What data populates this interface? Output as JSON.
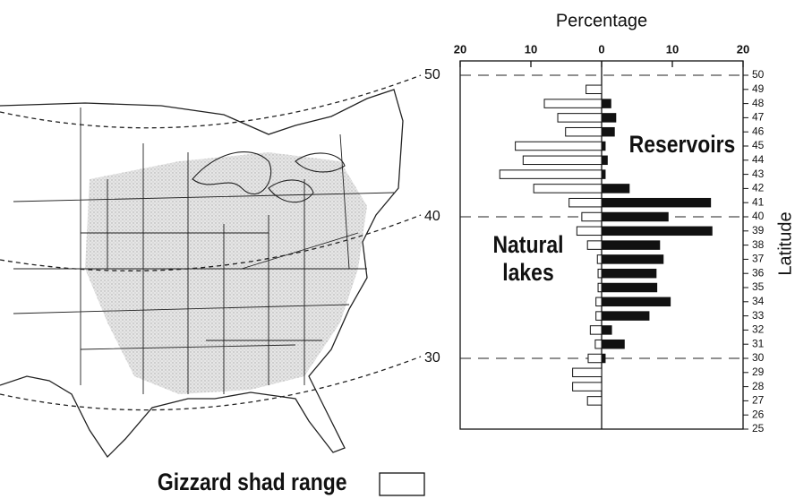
{
  "chart_data": {
    "type": "bar",
    "orientation": "horizontal",
    "x_label": "Percentage",
    "y_label": "Latitude",
    "xlim": [
      -20,
      20
    ],
    "xticks": [
      {
        "value": -20,
        "label": "20"
      },
      {
        "value": -10,
        "label": "10"
      },
      0,
      10,
      20
    ],
    "ylim": [
      25,
      50
    ],
    "yticks": [
      25,
      26,
      27,
      28,
      29,
      30,
      31,
      32,
      33,
      34,
      35,
      36,
      37,
      38,
      39,
      40,
      41,
      42,
      43,
      44,
      45,
      46,
      47,
      48,
      49,
      50
    ],
    "reference_lines": [
      50,
      40,
      30
    ],
    "y": [
      49,
      48,
      47,
      46,
      45,
      44,
      43,
      42,
      41,
      40,
      39,
      38,
      37,
      36,
      35,
      34,
      33,
      32,
      31,
      30,
      29,
      28,
      27,
      26
    ],
    "series": [
      {
        "name": "Natural lakes",
        "color": "#ffffff",
        "side": "left",
        "values": [
          2.2,
          8.1,
          6.2,
          5.1,
          12.2,
          11.1,
          14.4,
          9.6,
          4.6,
          2.8,
          3.5,
          2.0,
          0.6,
          0.5,
          0.5,
          0.8,
          0.8,
          1.6,
          0.9,
          1.9,
          4.1,
          4.1,
          2.0,
          0
        ]
      },
      {
        "name": "Reservoirs",
        "color": "#111111",
        "side": "right",
        "values": [
          0,
          1.3,
          2.0,
          1.8,
          0.5,
          0.8,
          0.5,
          3.9,
          15.4,
          9.4,
          15.6,
          8.2,
          8.7,
          7.7,
          7.8,
          9.7,
          6.7,
          1.4,
          3.2,
          0.5,
          0,
          0,
          0,
          0
        ]
      }
    ]
  },
  "map": {
    "legend": "Gizzard shad range"
  }
}
